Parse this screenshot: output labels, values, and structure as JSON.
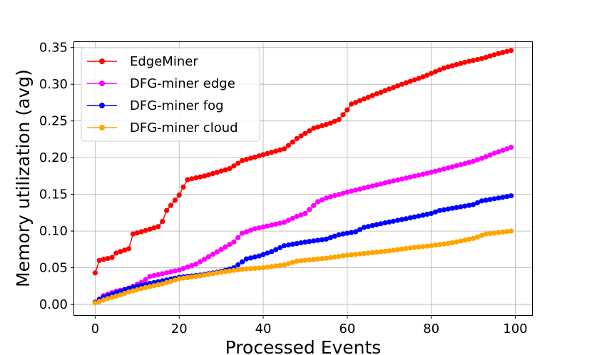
{
  "chart_data": {
    "type": "line",
    "xlabel": "Processed Events",
    "ylabel": "Memory utilization (avg)",
    "xlim": [
      -5,
      104
    ],
    "ylim": [
      -0.0145,
      0.3575
    ],
    "xticks": [
      0,
      20,
      40,
      60,
      80,
      100
    ],
    "yticks": [
      0.0,
      0.05,
      0.1,
      0.15,
      0.2,
      0.25,
      0.3,
      0.35
    ],
    "xtick_labels": [
      "0",
      "20",
      "40",
      "60",
      "80",
      "100"
    ],
    "ytick_labels": [
      "0.00",
      "0.05",
      "0.10",
      "0.15",
      "0.20",
      "0.25",
      "0.30",
      "0.35"
    ],
    "grid": true,
    "legend_position": "top-left",
    "series": [
      {
        "name": "EdgeMiner",
        "color": "#ff0000",
        "anchors": [
          [
            0,
            0.043
          ],
          [
            1,
            0.06
          ],
          [
            4,
            0.064
          ],
          [
            5,
            0.07
          ],
          [
            8,
            0.076
          ],
          [
            9,
            0.096
          ],
          [
            11,
            0.099
          ],
          [
            15,
            0.106
          ],
          [
            16,
            0.113
          ],
          [
            17,
            0.128
          ],
          [
            19,
            0.142
          ],
          [
            20,
            0.149
          ],
          [
            21,
            0.16
          ],
          [
            22,
            0.17
          ],
          [
            26,
            0.175
          ],
          [
            32,
            0.185
          ],
          [
            35,
            0.196
          ],
          [
            45,
            0.212
          ],
          [
            48,
            0.226
          ],
          [
            52,
            0.24
          ],
          [
            56,
            0.247
          ],
          [
            58,
            0.252
          ],
          [
            60,
            0.265
          ],
          [
            61,
            0.273
          ],
          [
            67,
            0.287
          ],
          [
            73,
            0.3
          ],
          [
            78,
            0.31
          ],
          [
            83,
            0.322
          ],
          [
            88,
            0.33
          ],
          [
            92,
            0.335
          ],
          [
            96,
            0.342
          ],
          [
            99,
            0.346
          ]
        ]
      },
      {
        "name": "DFG-miner edge",
        "color": "#ff00ff",
        "anchors": [
          [
            0,
            0.003
          ],
          [
            2,
            0.012
          ],
          [
            5,
            0.018
          ],
          [
            8,
            0.022
          ],
          [
            11,
            0.03
          ],
          [
            13,
            0.038
          ],
          [
            20,
            0.047
          ],
          [
            24,
            0.055
          ],
          [
            27,
            0.065
          ],
          [
            33,
            0.085
          ],
          [
            35,
            0.097
          ],
          [
            38,
            0.103
          ],
          [
            45,
            0.112
          ],
          [
            48,
            0.12
          ],
          [
            50,
            0.124
          ],
          [
            53,
            0.14
          ],
          [
            55,
            0.145
          ],
          [
            60,
            0.153
          ],
          [
            70,
            0.167
          ],
          [
            80,
            0.18
          ],
          [
            90,
            0.195
          ],
          [
            92,
            0.199
          ],
          [
            95,
            0.206
          ],
          [
            99,
            0.214
          ]
        ]
      },
      {
        "name": "DFG-miner fog",
        "color": "#0000ff",
        "anchors": [
          [
            0,
            0.003
          ],
          [
            2,
            0.01
          ],
          [
            5,
            0.016
          ],
          [
            8,
            0.022
          ],
          [
            10,
            0.025
          ],
          [
            15,
            0.031
          ],
          [
            20,
            0.037
          ],
          [
            25,
            0.04
          ],
          [
            30,
            0.045
          ],
          [
            33,
            0.05
          ],
          [
            36,
            0.062
          ],
          [
            39,
            0.066
          ],
          [
            42,
            0.072
          ],
          [
            45,
            0.08
          ],
          [
            50,
            0.085
          ],
          [
            55,
            0.089
          ],
          [
            58,
            0.095
          ],
          [
            62,
            0.099
          ],
          [
            64,
            0.105
          ],
          [
            68,
            0.11
          ],
          [
            75,
            0.118
          ],
          [
            80,
            0.124
          ],
          [
            82,
            0.128
          ],
          [
            90,
            0.136
          ],
          [
            92,
            0.141
          ],
          [
            99,
            0.148
          ]
        ]
      },
      {
        "name": "DFG-miner cloud",
        "color": "#ffa500",
        "anchors": [
          [
            0,
            0.002
          ],
          [
            3,
            0.008
          ],
          [
            6,
            0.013
          ],
          [
            8,
            0.017
          ],
          [
            12,
            0.023
          ],
          [
            16,
            0.028
          ],
          [
            20,
            0.035
          ],
          [
            25,
            0.039
          ],
          [
            30,
            0.044
          ],
          [
            35,
            0.048
          ],
          [
            40,
            0.05
          ],
          [
            45,
            0.054
          ],
          [
            48,
            0.059
          ],
          [
            55,
            0.063
          ],
          [
            60,
            0.067
          ],
          [
            65,
            0.07
          ],
          [
            70,
            0.073
          ],
          [
            75,
            0.077
          ],
          [
            80,
            0.08
          ],
          [
            85,
            0.084
          ],
          [
            90,
            0.09
          ],
          [
            93,
            0.096
          ],
          [
            99,
            0.1
          ]
        ]
      }
    ]
  }
}
